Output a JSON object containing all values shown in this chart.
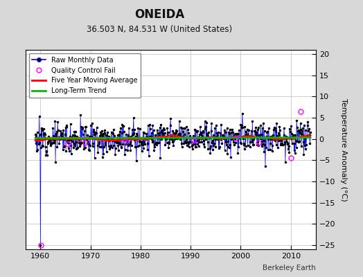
{
  "title": "ONEIDA",
  "subtitle": "36.503 N, 84.531 W (United States)",
  "ylabel": "Temperature Anomaly (°C)",
  "xlabel_credit": "Berkeley Earth",
  "xlim": [
    1957,
    2015
  ],
  "ylim": [
    -26,
    21
  ],
  "yticks": [
    -25,
    -20,
    -15,
    -10,
    -5,
    0,
    5,
    10,
    15,
    20
  ],
  "xticks": [
    1960,
    1970,
    1980,
    1990,
    2000,
    2010
  ],
  "start_year": 1959.0,
  "n_months": 660,
  "seed": 12,
  "raw_color": "#0000ff",
  "dot_color": "#000000",
  "qc_color": "#ff00ff",
  "moving_avg_color": "#ff0000",
  "trend_color": "#00bb00",
  "bg_color": "#d8d8d8",
  "plot_bg_color": "#ffffff",
  "grid_color": "#bbbbbb",
  "noise_scale": 1.8,
  "trend_slope": 0.0002,
  "trend_intercept": 0.2,
  "moving_avg_window": 60,
  "qc_fail_positions": [
    [
      1960.08,
      -25.0
    ],
    [
      1965.5,
      -1.2
    ],
    [
      1969.0,
      -0.8
    ],
    [
      1977.0,
      -0.5
    ],
    [
      1990.5,
      -0.3
    ],
    [
      1999.0,
      0.2
    ],
    [
      2003.5,
      -0.9
    ],
    [
      2010.0,
      -4.5
    ],
    [
      2012.0,
      6.5
    ]
  ],
  "outlier_time": 1960.08,
  "outlier_value": -25.0,
  "figsize": [
    5.24,
    4.0
  ],
  "dpi": 100
}
